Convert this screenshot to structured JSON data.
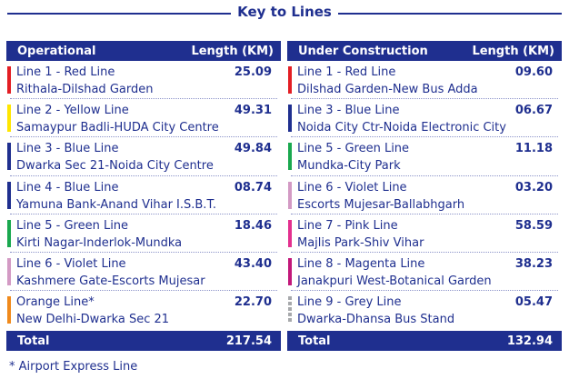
{
  "title": "Key to Lines",
  "operational": {
    "header": "Operational",
    "length_header": "Length (KM)",
    "rows": [
      {
        "name": "Line 1 - Red Line",
        "route": "Rithala-Dilshad Garden",
        "length": "25.09",
        "color": "#e31e24"
      },
      {
        "name": "Line 2 - Yellow Line",
        "route": "Samaypur Badli-HUDA City Centre",
        "length": "49.31",
        "color": "#ffe600"
      },
      {
        "name": "Line 3 - Blue Line",
        "route": "Dwarka Sec 21-Noida City Centre",
        "length": "49.84",
        "color": "#1f2f8f"
      },
      {
        "name": "Line 4 - Blue Line",
        "route": "Yamuna Bank-Anand Vihar I.S.B.T.",
        "length": "08.74",
        "color": "#1f2f8f"
      },
      {
        "name": "Line 5 - Green Line",
        "route": "Kirti Nagar-Inderlok-Mundka",
        "length": "18.46",
        "color": "#1aa84f"
      },
      {
        "name": "Line 6 - Violet Line",
        "route": "Kashmere Gate-Escorts Mujesar",
        "length": "43.40",
        "color": "#d39ac4"
      },
      {
        "name": "Orange Line*",
        "route": "New Delhi-Dwarka Sec 21",
        "length": "22.70",
        "color": "#f08a1c"
      }
    ],
    "total_label": "Total",
    "total_value": "217.54"
  },
  "under_construction": {
    "header": "Under Construction",
    "length_header": "Length (KM)",
    "rows": [
      {
        "name": "Line 1 - Red Line",
        "route": "Dilshad Garden-New Bus Adda",
        "length": "09.60",
        "color": "#e31e24"
      },
      {
        "name": "Line 3 - Blue Line",
        "route": "Noida City Ctr-Noida Electronic City",
        "length": "06.67",
        "color": "#1f2f8f"
      },
      {
        "name": "Line 5 - Green Line",
        "route": "Mundka-City Park",
        "length": "11.18",
        "color": "#1aa84f"
      },
      {
        "name": "Line 6 - Violet Line",
        "route": "Escorts Mujesar-Ballabhgarh",
        "length": "03.20",
        "color": "#d39ac4"
      },
      {
        "name": "Line 7 - Pink Line",
        "route": "Majlis Park-Shiv Vihar",
        "length": "58.59",
        "color": "#e3308f"
      },
      {
        "name": "Line 8 - Magenta Line",
        "route": "Janakpuri West-Botanical Garden",
        "length": "38.23",
        "color": "#c2187a"
      },
      {
        "name": "Line 9 - Grey Line",
        "route": "Dwarka-Dhansa Bus Stand",
        "length": "05.47",
        "color": "#a7a9ac",
        "dashed": true
      }
    ],
    "total_label": "Total",
    "total_value": "132.94"
  },
  "footnote": "* Airport Express Line"
}
